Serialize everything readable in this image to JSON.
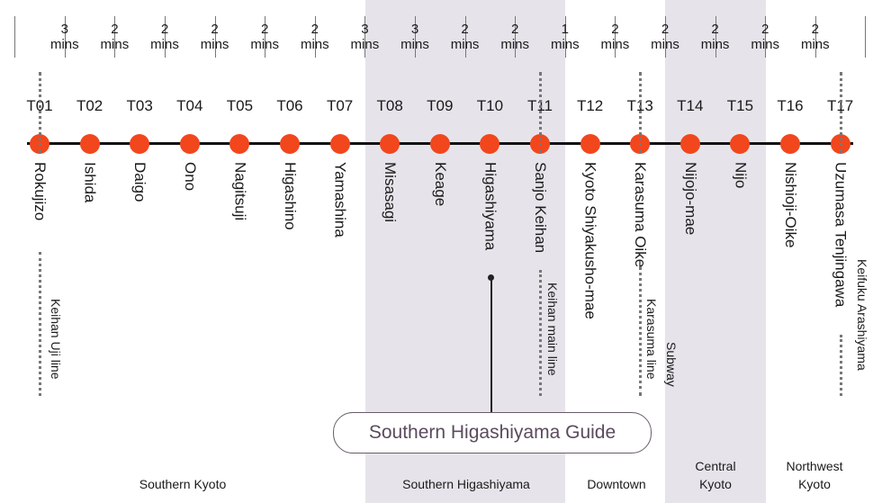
{
  "stations": [
    {
      "code": "T01",
      "name": "Rokujizo"
    },
    {
      "code": "T02",
      "name": "Ishida"
    },
    {
      "code": "T03",
      "name": "Daigo"
    },
    {
      "code": "T04",
      "name": "Ono"
    },
    {
      "code": "T05",
      "name": "Nagitsuji"
    },
    {
      "code": "T06",
      "name": "Higashino"
    },
    {
      "code": "T07",
      "name": "Yamashina"
    },
    {
      "code": "T08",
      "name": "Misasagi"
    },
    {
      "code": "T09",
      "name": "Keage"
    },
    {
      "code": "T10",
      "name": "Higashiyama"
    },
    {
      "code": "T11",
      "name": "Sanjo Keihan"
    },
    {
      "code": "T12",
      "name": "Kyoto Shiyakusho-mae"
    },
    {
      "code": "T13",
      "name": "Karasuma Oike"
    },
    {
      "code": "T14",
      "name": "Nijojo-mae"
    },
    {
      "code": "T15",
      "name": "Nijo"
    },
    {
      "code": "T16",
      "name": "Nishioji-Oike"
    },
    {
      "code": "T17",
      "name": "Uzumasa Tenjingawa"
    }
  ],
  "travel_times": [
    {
      "num": "3",
      "unit": "mins"
    },
    {
      "num": "2",
      "unit": "mins"
    },
    {
      "num": "2",
      "unit": "mins"
    },
    {
      "num": "2",
      "unit": "mins"
    },
    {
      "num": "2",
      "unit": "mins"
    },
    {
      "num": "2",
      "unit": "mins"
    },
    {
      "num": "3",
      "unit": "mins"
    },
    {
      "num": "3",
      "unit": "mins"
    },
    {
      "num": "2",
      "unit": "mins"
    },
    {
      "num": "2",
      "unit": "mins"
    },
    {
      "num": "1",
      "unit": "mins"
    },
    {
      "num": "2",
      "unit": "mins"
    },
    {
      "num": "2",
      "unit": "mins"
    },
    {
      "num": "2",
      "unit": "mins"
    },
    {
      "num": "2",
      "unit": "mins"
    },
    {
      "num": "2",
      "unit": "mins"
    }
  ],
  "connections": [
    {
      "station": "T01",
      "label": "Keihan Uji line"
    },
    {
      "station": "T11",
      "label": "Keihan main line"
    },
    {
      "station": "T13",
      "label": "Karasuma line"
    },
    {
      "station": "T13",
      "label": "Subway"
    },
    {
      "station": "T17",
      "label": "Keifuku Arashiyama"
    }
  ],
  "guide_button": "Southern Higashiyama Guide",
  "areas": [
    {
      "lines": [
        "Southern Kyoto"
      ]
    },
    {
      "lines": [
        "Southern Higashiyama"
      ]
    },
    {
      "lines": [
        "Downtown"
      ]
    },
    {
      "lines": [
        "Central",
        "Kyoto"
      ]
    },
    {
      "lines": [
        "Northwest",
        "Kyoto"
      ]
    }
  ],
  "colors": {
    "station_dot": "#f2461d",
    "band": "#e6e4ea",
    "guide_text": "#5b4a5e"
  }
}
